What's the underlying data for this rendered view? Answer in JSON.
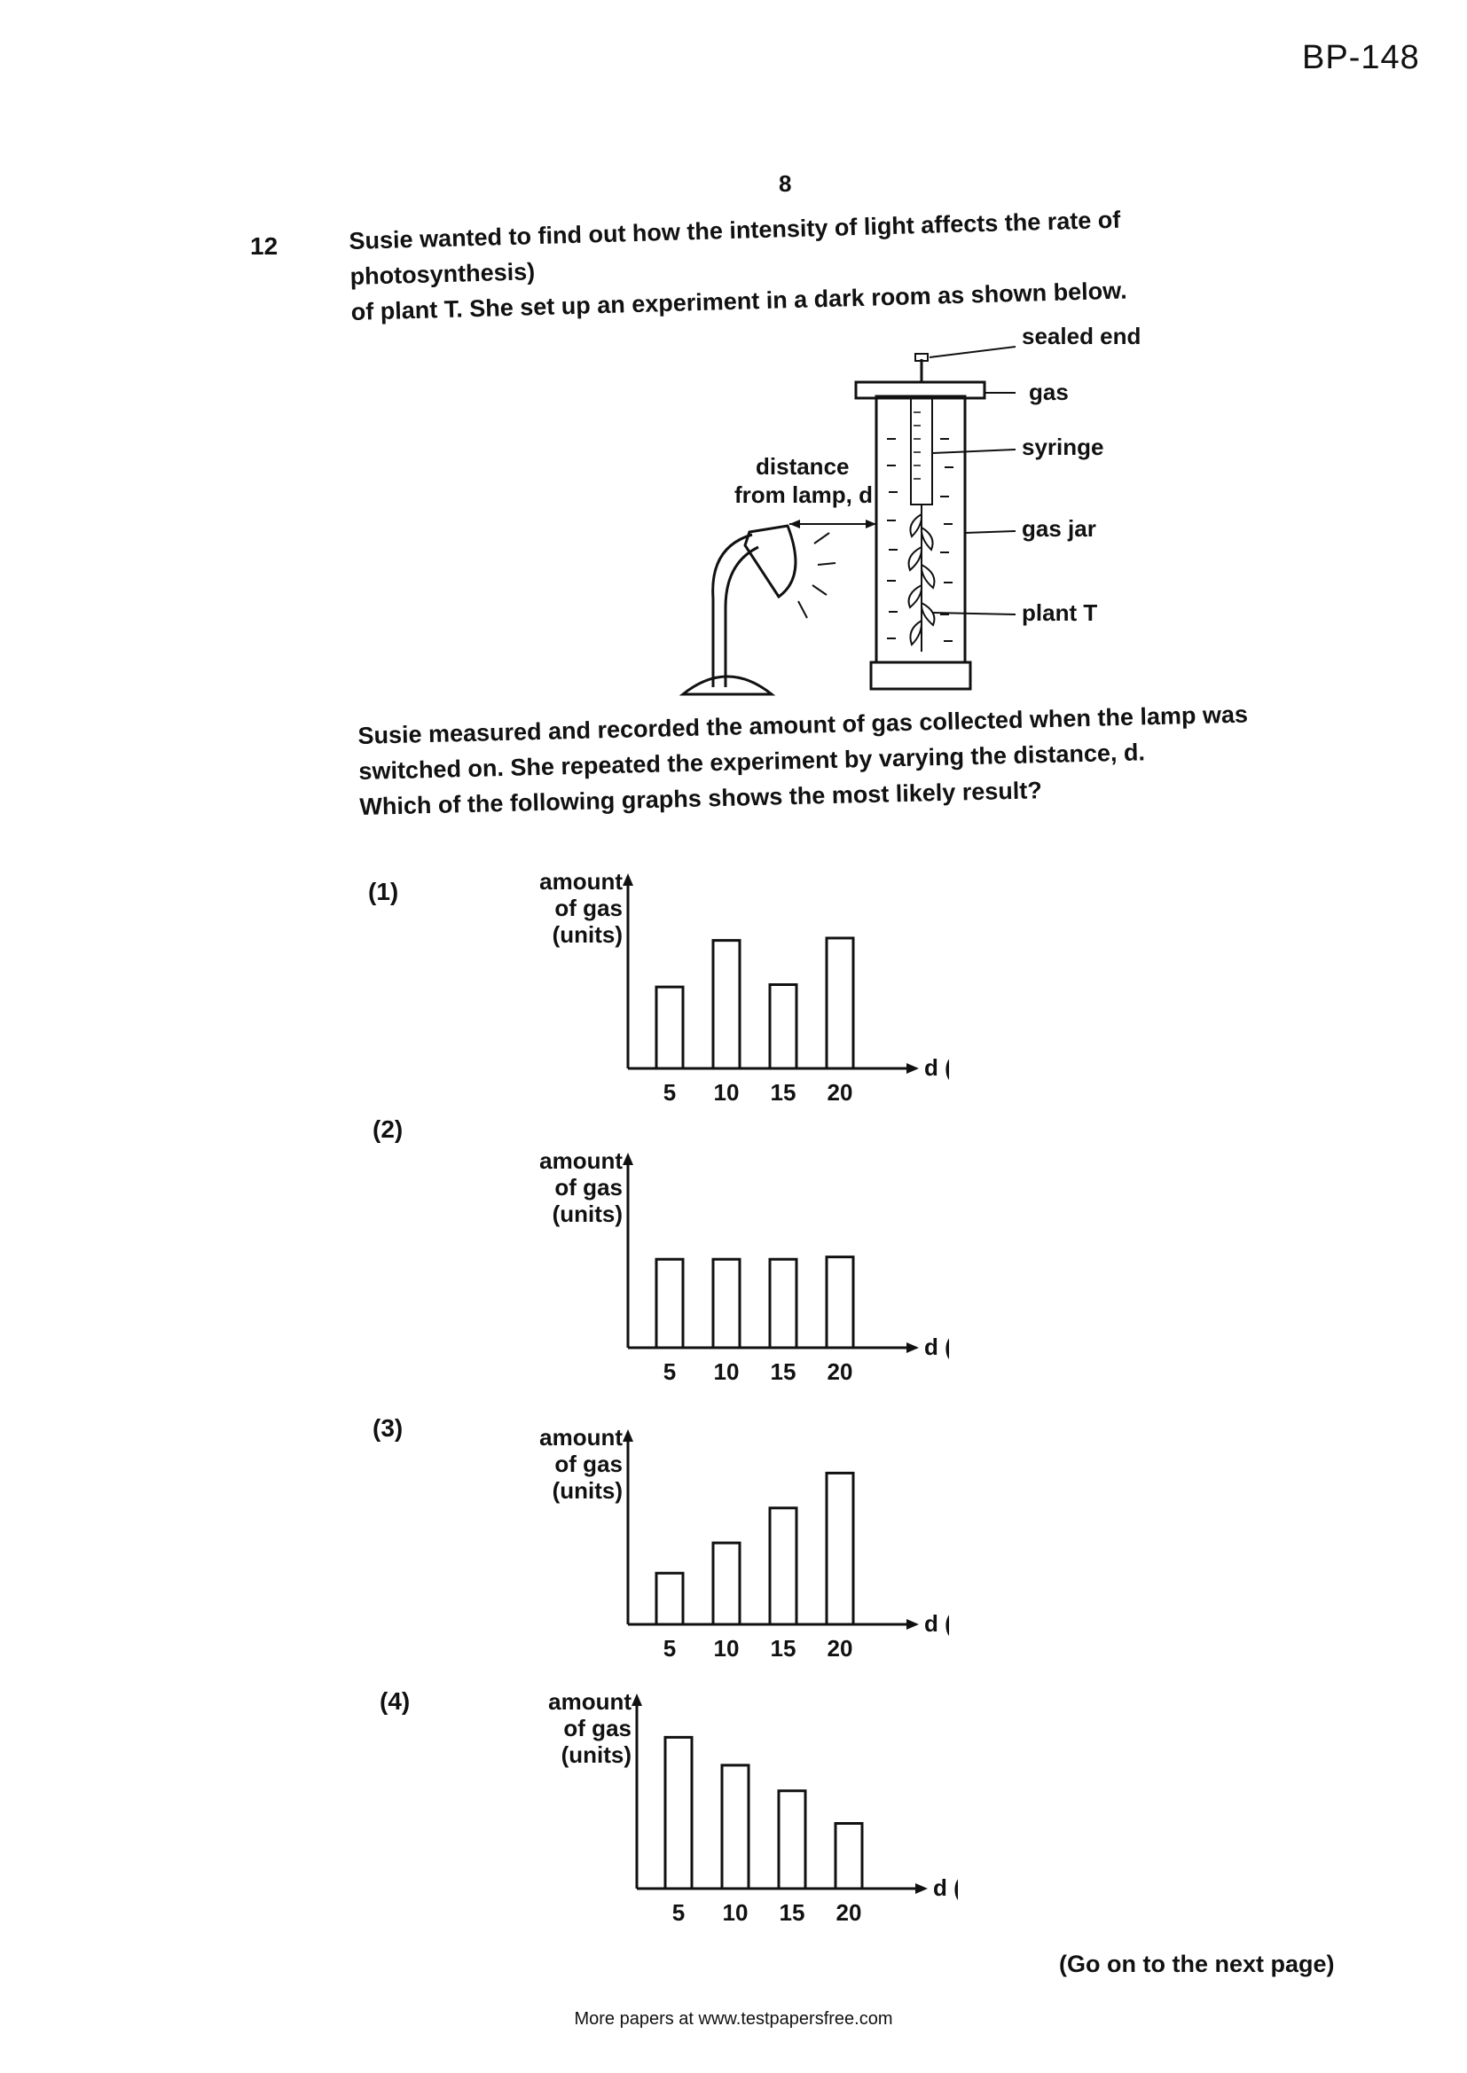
{
  "header": {
    "code": "BP-148",
    "page_number": "8"
  },
  "question": {
    "number": "12",
    "stem_lines": [
      "Susie wanted to find out how the intensity of light affects the rate of photosynthesis)",
      "of plant T. She set up an experiment in a dark room as shown below."
    ],
    "followup_lines": [
      "Susie measured and recorded the amount of gas collected when the lamp was",
      "switched on. She repeated the experiment by varying the distance, d.",
      "Which of the following graphs shows the most likely result?"
    ]
  },
  "diagram": {
    "labels": {
      "sealed_end": "sealed end",
      "gas": "gas",
      "syringe": "syringe",
      "gas_jar": "gas jar",
      "plant": "plant T",
      "distance_line1": "distance",
      "distance_line2": "from lamp, d"
    }
  },
  "options": [
    {
      "label": "(1)"
    },
    {
      "label": "(2)"
    },
    {
      "label": "(3)"
    },
    {
      "label": "(4)"
    }
  ],
  "chart_data": [
    {
      "type": "bar",
      "categories": [
        "5",
        "10",
        "15",
        "20"
      ],
      "values": [
        3.5,
        5.5,
        3.6,
        5.6
      ],
      "ylabel_line1": "amount of gas",
      "ylabel_line2": "(units)",
      "xlabel": "d (cm)"
    },
    {
      "type": "bar",
      "categories": [
        "5",
        "10",
        "15",
        "20"
      ],
      "values": [
        3.8,
        3.8,
        3.8,
        3.9
      ],
      "ylabel_line1": "amount of gas",
      "ylabel_line2": "(units)",
      "xlabel": "d (cm)"
    },
    {
      "type": "bar",
      "categories": [
        "5",
        "10",
        "15",
        "20"
      ],
      "values": [
        2.2,
        3.5,
        5.0,
        6.5
      ],
      "ylabel_line1": "amount of gas",
      "ylabel_line2": "(units)",
      "xlabel": "d (cm)"
    },
    {
      "type": "bar",
      "categories": [
        "5",
        "10",
        "15",
        "20"
      ],
      "values": [
        6.5,
        5.3,
        4.2,
        2.8
      ],
      "ylabel_line1": "amount of gas",
      "ylabel_line2": "(units)",
      "xlabel": "d (cm)"
    }
  ],
  "footer": {
    "go_on": "(Go on to the next page)",
    "source": "More papers at www.testpapersfree.com"
  }
}
